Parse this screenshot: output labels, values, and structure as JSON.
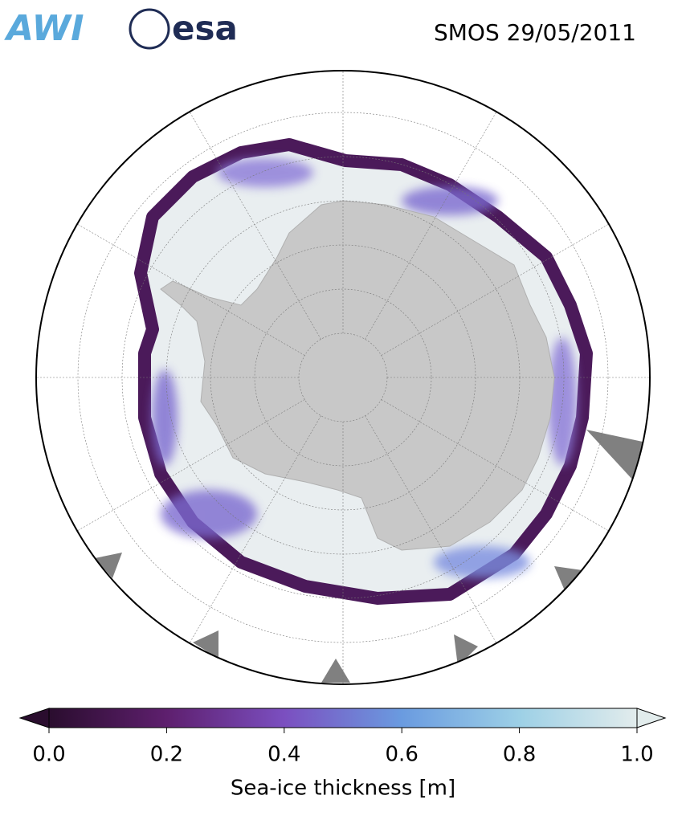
{
  "header": {
    "logos": [
      "AWI",
      "esa"
    ],
    "title": "SMOS 29/05/2011"
  },
  "colorbar": {
    "label": "Sea-ice thickness [m]",
    "range": [
      0,
      1
    ],
    "ticks": [
      {
        "value": 0,
        "label": "0.0"
      },
      {
        "value": 0.2,
        "label": "0.2"
      },
      {
        "value": 0.4,
        "label": "0.4"
      },
      {
        "value": 0.6,
        "label": "0.6"
      },
      {
        "value": 0.8,
        "label": "0.8"
      },
      {
        "value": 1,
        "label": "1.0"
      }
    ],
    "colors": [
      "#2a0d2e",
      "#5e1f6e",
      "#7b4fc0",
      "#6a9be0",
      "#9dd0e6",
      "#e2ecec"
    ]
  }
}
